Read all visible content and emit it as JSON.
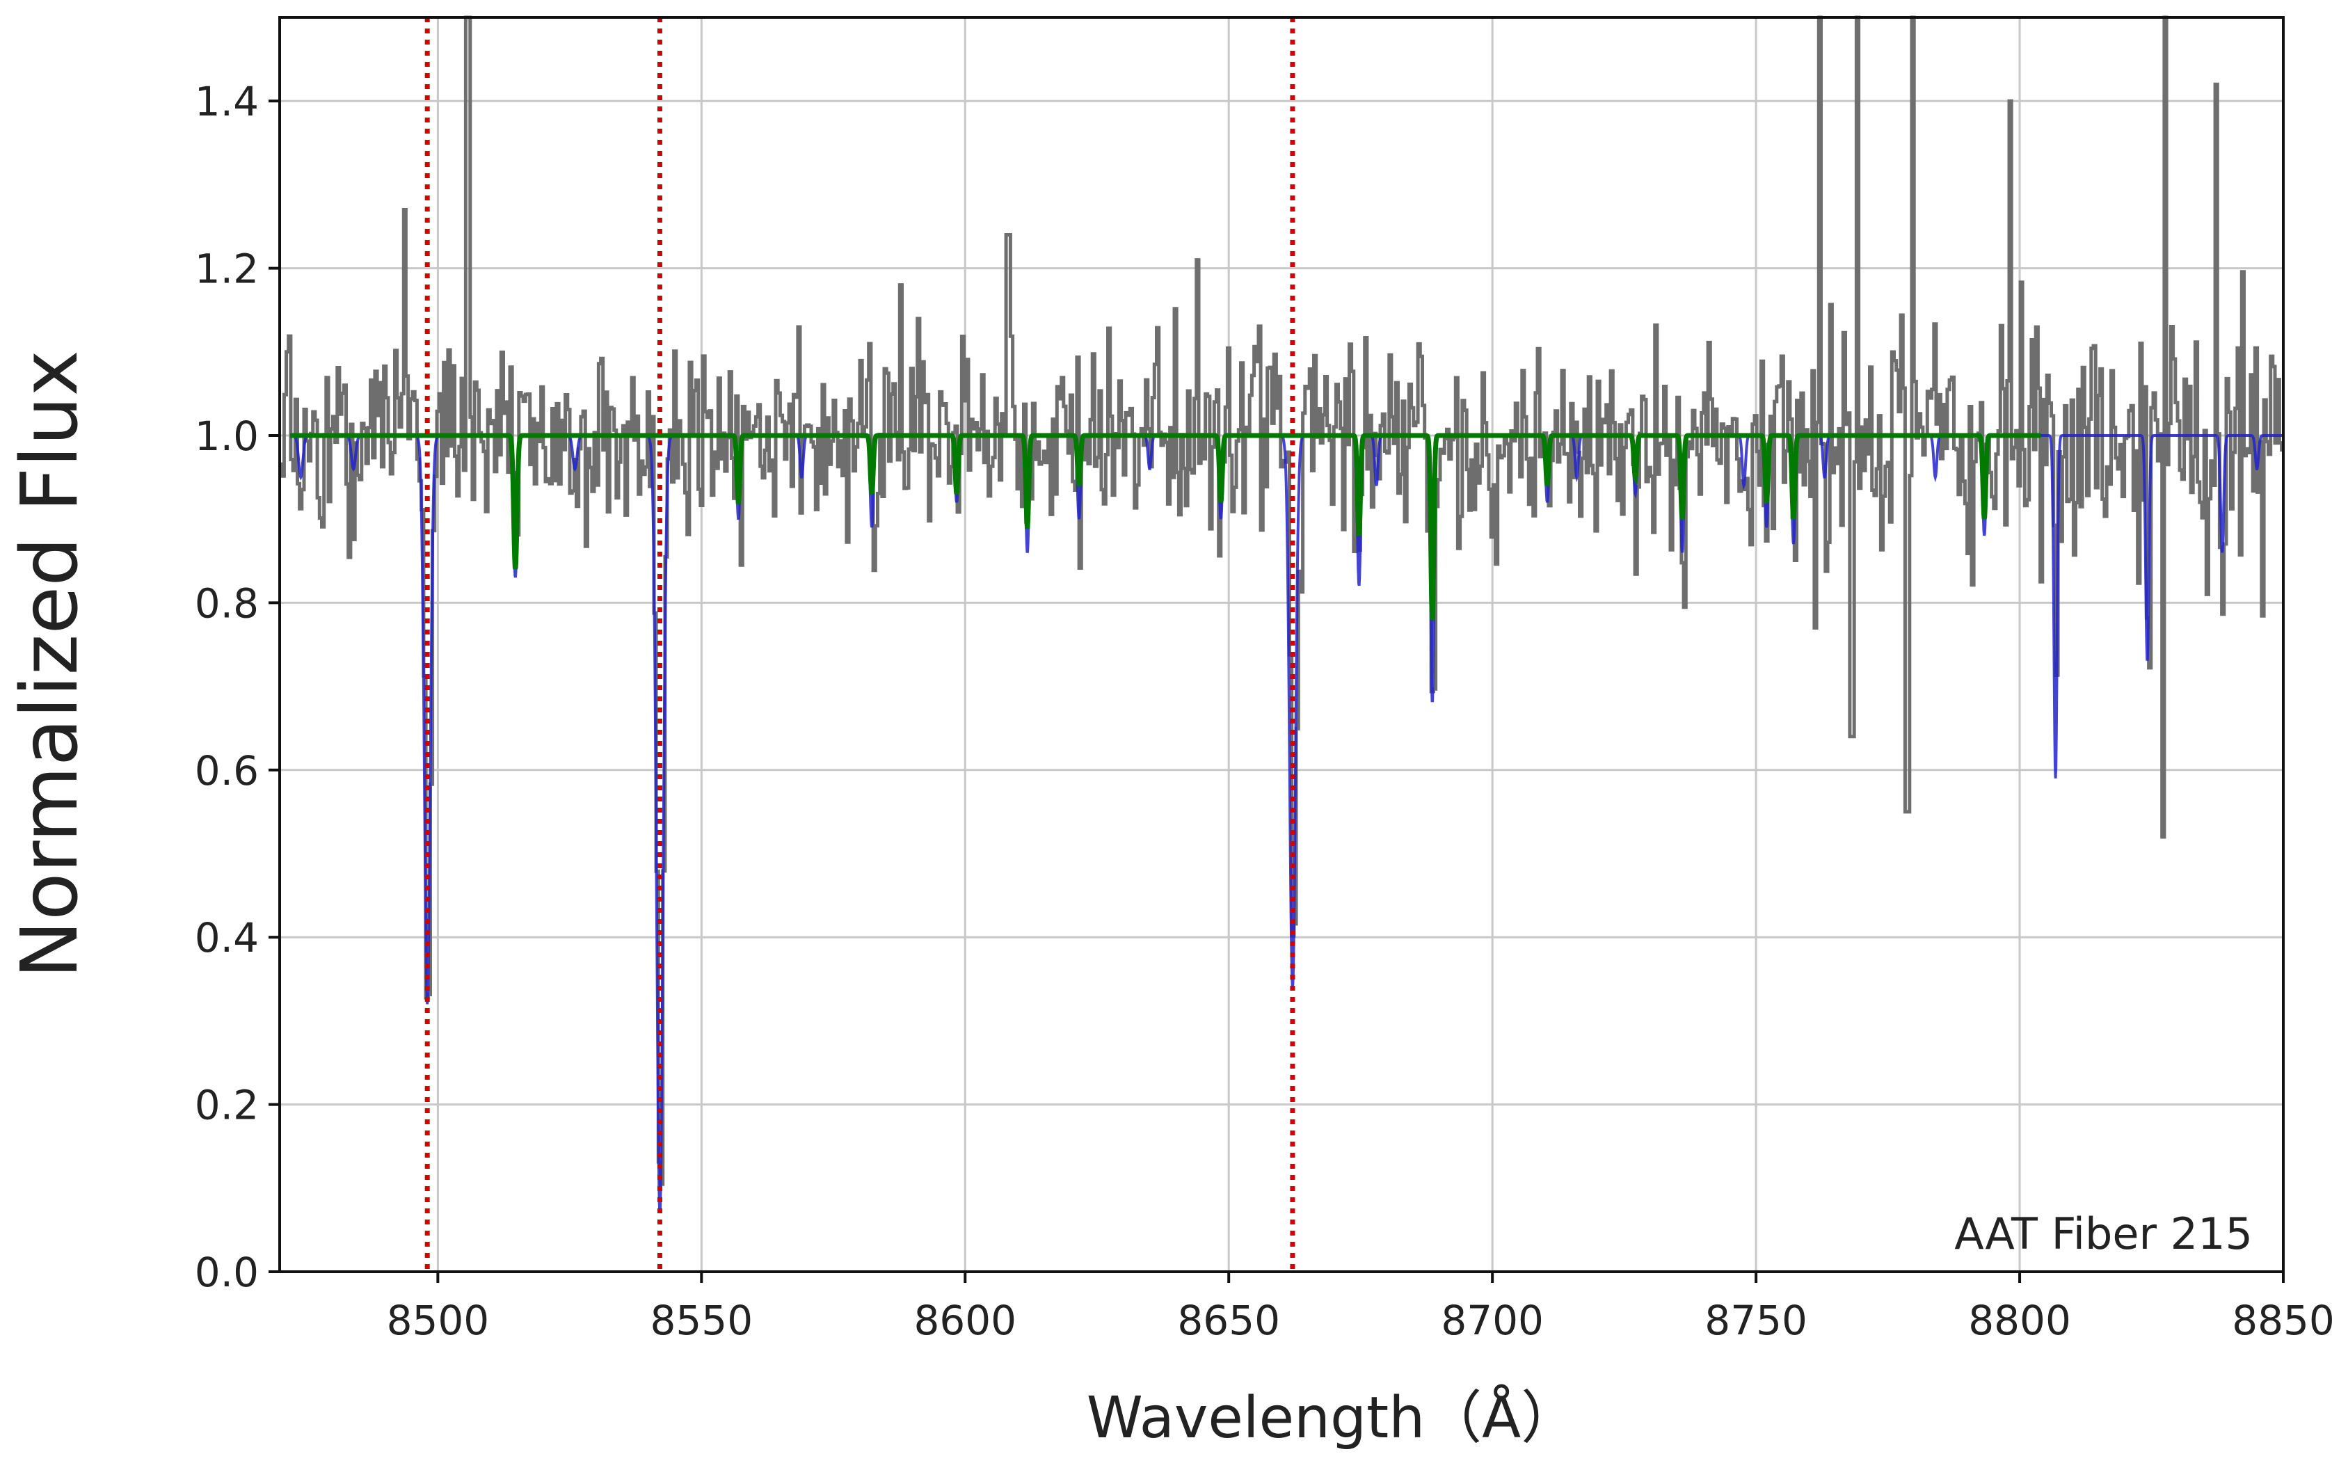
{
  "chart_data": {
    "type": "line",
    "title": "",
    "xlabel": "Wavelength（Å）",
    "ylabel": "Normalized Flux",
    "annotation": "AAT Fiber 215",
    "xlim": [
      8470,
      8850
    ],
    "ylim": [
      0.0,
      1.5
    ],
    "x_ticks": [
      8500,
      8550,
      8600,
      8650,
      8700,
      8750,
      8800,
      8850
    ],
    "x_tick_labels": [
      "8500",
      "8550",
      "8600",
      "8650",
      "8700",
      "8750",
      "8800",
      "8850"
    ],
    "y_ticks": [
      0.0,
      0.2,
      0.4,
      0.6,
      0.8,
      1.0,
      1.2,
      1.4
    ],
    "y_tick_labels": [
      "0.0",
      "0.2",
      "0.4",
      "0.6",
      "0.8",
      "1.0",
      "1.2",
      "1.4"
    ],
    "grid": true,
    "reference_lines": {
      "style": "dotted",
      "color": "#d40000",
      "x": [
        8498.0,
        8542.1,
        8662.1
      ]
    },
    "colors": {
      "observed": "#6e6e6e",
      "model": "#2222cc",
      "telluric": "#007a00"
    },
    "absorption_lines": [
      {
        "x": 8498.0,
        "model_depth": 0.68,
        "sigma": 0.55,
        "telluric_depth": 0.0
      },
      {
        "x": 8542.1,
        "model_depth": 0.93,
        "sigma": 0.6,
        "telluric_depth": 0.0
      },
      {
        "x": 8662.1,
        "model_depth": 0.66,
        "sigma": 0.55,
        "telluric_depth": 0.0
      },
      {
        "x": 8514.7,
        "model_depth": 0.17,
        "sigma": 0.35,
        "telluric_depth": 0.16
      },
      {
        "x": 8557.0,
        "model_depth": 0.1,
        "sigma": 0.3,
        "telluric_depth": 0.08
      },
      {
        "x": 8582.3,
        "model_depth": 0.11,
        "sigma": 0.3,
        "telluric_depth": 0.07
      },
      {
        "x": 8598.4,
        "model_depth": 0.08,
        "sigma": 0.3,
        "telluric_depth": 0.07
      },
      {
        "x": 8611.8,
        "model_depth": 0.14,
        "sigma": 0.3,
        "telluric_depth": 0.11
      },
      {
        "x": 8621.6,
        "model_depth": 0.1,
        "sigma": 0.3,
        "telluric_depth": 0.06
      },
      {
        "x": 8648.5,
        "model_depth": 0.1,
        "sigma": 0.3,
        "telluric_depth": 0.08
      },
      {
        "x": 8674.7,
        "model_depth": 0.18,
        "sigma": 0.3,
        "telluric_depth": 0.12
      },
      {
        "x": 8688.6,
        "model_depth": 0.32,
        "sigma": 0.3,
        "telluric_depth": 0.22
      },
      {
        "x": 8710.4,
        "model_depth": 0.08,
        "sigma": 0.3,
        "telluric_depth": 0.06
      },
      {
        "x": 8727.1,
        "model_depth": 0.07,
        "sigma": 0.3,
        "telluric_depth": 0.05
      },
      {
        "x": 8736.0,
        "model_depth": 0.14,
        "sigma": 0.3,
        "telluric_depth": 0.1
      },
      {
        "x": 8747.7,
        "model_depth": 0.06,
        "sigma": 0.3,
        "telluric_depth": 0.0
      },
      {
        "x": 8752.0,
        "model_depth": 0.11,
        "sigma": 0.3,
        "telluric_depth": 0.08
      },
      {
        "x": 8757.1,
        "model_depth": 0.13,
        "sigma": 0.3,
        "telluric_depth": 0.1
      },
      {
        "x": 8793.3,
        "model_depth": 0.12,
        "sigma": 0.3,
        "telluric_depth": 0.1
      },
      {
        "x": 8806.8,
        "model_depth": 0.41,
        "sigma": 0.3,
        "telluric_depth": 0.0
      },
      {
        "x": 8824.2,
        "model_depth": 0.27,
        "sigma": 0.3,
        "telluric_depth": 0.0
      },
      {
        "x": 8838.4,
        "model_depth": 0.14,
        "sigma": 0.3,
        "telluric_depth": 0.0
      },
      {
        "x": 8474.0,
        "model_depth": 0.05,
        "sigma": 0.4,
        "telluric_depth": 0.0
      },
      {
        "x": 8484.0,
        "model_depth": 0.04,
        "sigma": 0.4,
        "telluric_depth": 0.0
      },
      {
        "x": 8526.0,
        "model_depth": 0.04,
        "sigma": 0.4,
        "telluric_depth": 0.0
      },
      {
        "x": 8569.0,
        "model_depth": 0.05,
        "sigma": 0.3,
        "telluric_depth": 0.0
      },
      {
        "x": 8635.0,
        "model_depth": 0.04,
        "sigma": 0.3,
        "telluric_depth": 0.0
      },
      {
        "x": 8678.0,
        "model_depth": 0.06,
        "sigma": 0.3,
        "telluric_depth": 0.0
      },
      {
        "x": 8716.0,
        "model_depth": 0.05,
        "sigma": 0.3,
        "telluric_depth": 0.0
      },
      {
        "x": 8763.0,
        "model_depth": 0.05,
        "sigma": 0.3,
        "telluric_depth": 0.0
      },
      {
        "x": 8784.0,
        "model_depth": 0.05,
        "sigma": 0.3,
        "telluric_depth": 0.0
      },
      {
        "x": 8845.0,
        "model_depth": 0.04,
        "sigma": 0.3,
        "telluric_depth": 0.0
      }
    ],
    "observed_spikes": [
      {
        "x": 8493.5,
        "y": 1.27
      },
      {
        "x": 8505.5,
        "y": 1.5
      },
      {
        "x": 8608.0,
        "y": 1.24
      },
      {
        "x": 8587.5,
        "y": 1.18
      },
      {
        "x": 8644.0,
        "y": 1.21
      },
      {
        "x": 8762.0,
        "y": 1.5
      },
      {
        "x": 8769.0,
        "y": 1.5
      },
      {
        "x": 8779.5,
        "y": 1.5
      },
      {
        "x": 8798.0,
        "y": 1.4
      },
      {
        "x": 8827.5,
        "y": 1.5
      },
      {
        "x": 8837.0,
        "y": 1.42
      },
      {
        "x": 8768.0,
        "y": 0.64
      },
      {
        "x": 8778.5,
        "y": 0.55
      },
      {
        "x": 8827.0,
        "y": 0.52
      },
      {
        "x": 8835.5,
        "y": 0.81
      },
      {
        "x": 8761.0,
        "y": 0.77
      }
    ],
    "series": [
      {
        "role": "observed spectrum",
        "color": "#6e6e6e",
        "x_range": [
          8470,
          8850
        ],
        "continuum": 1.0,
        "noise_sigma": 0.05,
        "scatter_ranges": [
          [
            8470,
            8555,
            0.05
          ],
          [
            8555,
            8680,
            0.06
          ],
          [
            8680,
            8760,
            0.055
          ],
          [
            8760,
            8850,
            0.07
          ]
        ]
      },
      {
        "role": "synthetic model",
        "color": "#2222cc",
        "x_range": [
          8472,
          8850
        ],
        "continuum": 1.0
      },
      {
        "role": "telluric model",
        "color": "#007a00",
        "x_range": [
          8472,
          8804
        ],
        "continuum": 1.0
      }
    ]
  }
}
